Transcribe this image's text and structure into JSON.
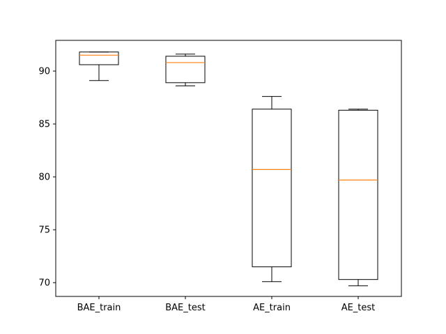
{
  "chart_data": {
    "type": "box",
    "title": "",
    "xlabel": "",
    "ylabel": "",
    "ylim": [
      68.7,
      92.9
    ],
    "yticks": [
      70,
      75,
      80,
      85,
      90
    ],
    "ytick_labels": [
      "70",
      "75",
      "80",
      "85",
      "90"
    ],
    "grid": false,
    "categories": [
      "BAE_train",
      "BAE_test",
      "AE_train",
      "AE_test"
    ],
    "boxes": [
      {
        "category": "BAE_train",
        "whisker_low": 89.1,
        "q1": 90.6,
        "median": 91.5,
        "q3": 91.8,
        "whisker_high": 91.8
      },
      {
        "category": "BAE_test",
        "whisker_low": 88.6,
        "q1": 88.9,
        "median": 90.8,
        "q3": 91.4,
        "whisker_high": 91.6
      },
      {
        "category": "AE_train",
        "whisker_low": 70.1,
        "q1": 71.5,
        "median": 80.7,
        "q3": 86.4,
        "whisker_high": 87.6
      },
      {
        "category": "AE_test",
        "whisker_low": 69.7,
        "q1": 70.3,
        "median": 79.7,
        "q3": 86.3,
        "whisker_high": 86.4
      }
    ],
    "colors": {
      "box": "#000000",
      "median": "#ff7f0e",
      "axes": "#000000"
    }
  }
}
